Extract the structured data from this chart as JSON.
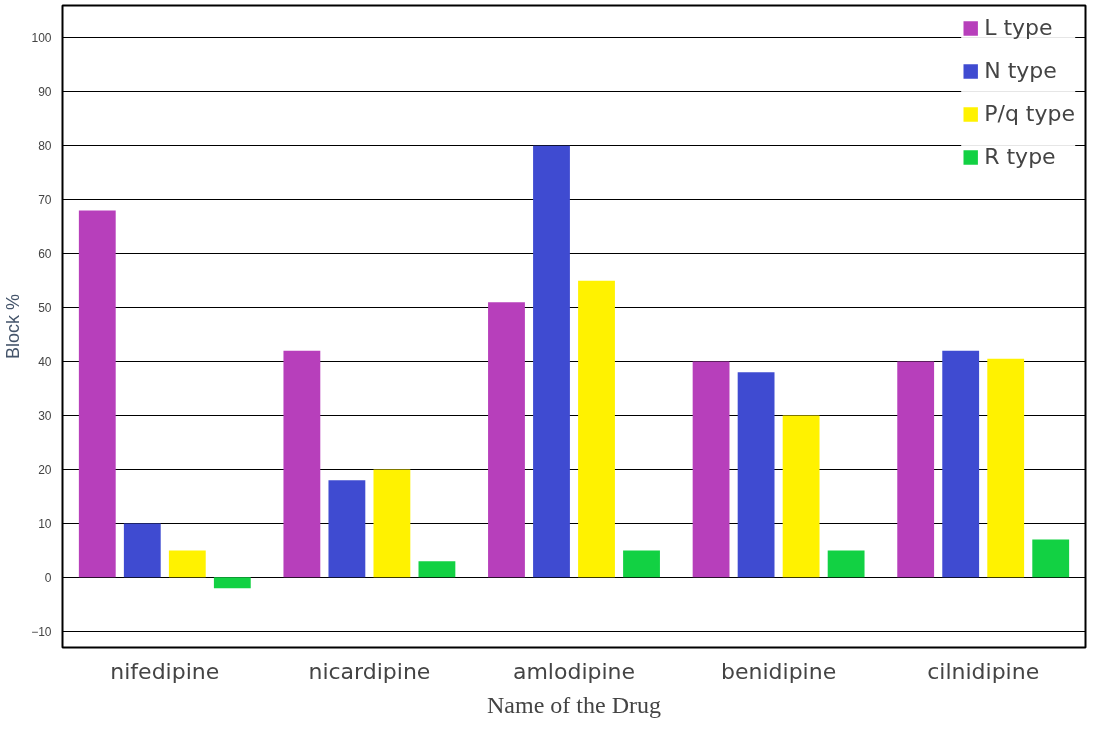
{
  "chart_data": {
    "type": "bar",
    "xlabel": "Name of the Drug",
    "ylabel": "Block %",
    "categories": [
      "nifedipine",
      "nicardipine",
      "amlodipine",
      "benidipine",
      "cilnidipine"
    ],
    "series": [
      {
        "name": "L type",
        "color": "#b73fbb",
        "values": [
          68,
          42,
          51,
          40,
          40
        ]
      },
      {
        "name": "N type",
        "color": "#3f4bd1",
        "values": [
          10,
          18,
          80,
          38,
          42
        ]
      },
      {
        "name": "P/q type",
        "color": "#fff200",
        "values": [
          5,
          20,
          55,
          30,
          40.5
        ]
      },
      {
        "name": "R type",
        "color": "#12d143",
        "values": [
          -2,
          3,
          5,
          5,
          7
        ]
      }
    ],
    "ylim": [
      -13,
      106
    ],
    "yticks": [
      -10,
      0,
      10,
      20,
      30,
      40,
      50,
      60,
      70,
      80,
      90,
      100
    ],
    "grid": "y",
    "legend": "top right"
  }
}
